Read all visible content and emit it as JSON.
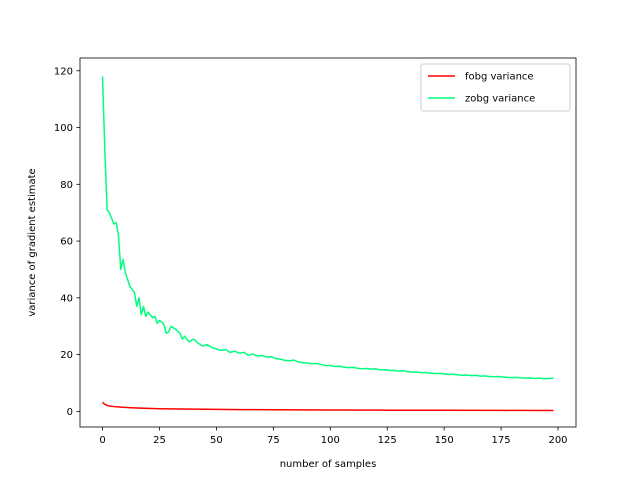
{
  "chart_data": {
    "type": "line",
    "title": "",
    "xlabel": "number of samples",
    "ylabel": "variance of gradient estimate",
    "xlim": [
      -9.9,
      207.9
    ],
    "ylim": [
      -5.5,
      124.5
    ],
    "xticks": [
      0,
      25,
      50,
      75,
      100,
      125,
      150,
      175,
      200
    ],
    "yticks": [
      0,
      20,
      40,
      60,
      80,
      100,
      120
    ],
    "grid": false,
    "legend": "top-right",
    "series": [
      {
        "name": "fobg variance",
        "color": "#ff0000",
        "points": [
          [
            0,
            3.2
          ],
          [
            1,
            2.5
          ],
          [
            2,
            2.1
          ],
          [
            3,
            1.9
          ],
          [
            5,
            1.7
          ],
          [
            8,
            1.5
          ],
          [
            10,
            1.4
          ],
          [
            15,
            1.2
          ],
          [
            20,
            1.05
          ],
          [
            25,
            0.95
          ],
          [
            30,
            0.88
          ],
          [
            40,
            0.78
          ],
          [
            50,
            0.7
          ],
          [
            60,
            0.64
          ],
          [
            75,
            0.56
          ],
          [
            100,
            0.48
          ],
          [
            125,
            0.42
          ],
          [
            150,
            0.38
          ],
          [
            175,
            0.34
          ],
          [
            198,
            0.3
          ]
        ]
      },
      {
        "name": "zobg variance",
        "color": "#00ff7f",
        "points": [
          [
            0,
            118
          ],
          [
            1,
            92
          ],
          [
            2,
            71
          ],
          [
            3,
            70
          ],
          [
            4,
            68
          ],
          [
            5,
            66
          ],
          [
            6,
            66.5
          ],
          [
            7,
            62
          ],
          [
            8,
            50
          ],
          [
            9,
            53.5
          ],
          [
            10,
            49
          ],
          [
            11,
            46.5
          ],
          [
            12,
            44
          ],
          [
            13,
            43
          ],
          [
            14,
            42
          ],
          [
            15,
            37
          ],
          [
            16,
            40
          ],
          [
            17,
            34
          ],
          [
            18,
            37
          ],
          [
            19,
            33.5
          ],
          [
            20,
            35
          ],
          [
            21,
            34
          ],
          [
            22,
            33
          ],
          [
            23,
            33.5
          ],
          [
            24,
            31
          ],
          [
            25,
            32
          ],
          [
            26,
            31.5
          ],
          [
            27,
            30.5
          ],
          [
            28,
            27.5
          ],
          [
            29,
            28
          ],
          [
            30,
            30
          ],
          [
            32,
            29
          ],
          [
            34,
            27.5
          ],
          [
            35,
            25.5
          ],
          [
            36,
            26.5
          ],
          [
            38,
            24.5
          ],
          [
            40,
            25.5
          ],
          [
            42,
            24
          ],
          [
            44,
            23
          ],
          [
            46,
            23.5
          ],
          [
            48,
            22.5
          ],
          [
            50,
            22
          ],
          [
            52,
            21.5
          ],
          [
            54,
            21.8
          ],
          [
            56,
            20.8
          ],
          [
            58,
            21.2
          ],
          [
            60,
            20.5
          ],
          [
            62,
            20.8
          ],
          [
            64,
            19.8
          ],
          [
            66,
            20.2
          ],
          [
            68,
            19.5
          ],
          [
            70,
            19.7
          ],
          [
            72,
            19.1
          ],
          [
            74,
            19.3
          ],
          [
            76,
            18.6
          ],
          [
            78,
            18.4
          ],
          [
            80,
            18
          ],
          [
            82,
            17.8
          ],
          [
            84,
            18.1
          ],
          [
            86,
            17.4
          ],
          [
            88,
            17.2
          ],
          [
            90,
            17
          ],
          [
            92,
            16.8
          ],
          [
            94,
            16.9
          ],
          [
            96,
            16.5
          ],
          [
            98,
            16.1
          ],
          [
            100,
            16.2
          ],
          [
            102,
            15.8
          ],
          [
            104,
            15.9
          ],
          [
            106,
            15.6
          ],
          [
            108,
            15.4
          ],
          [
            110,
            15.5
          ],
          [
            112,
            15.2
          ],
          [
            114,
            15
          ],
          [
            116,
            15.1
          ],
          [
            118,
            14.9
          ],
          [
            120,
            15
          ],
          [
            122,
            14.6
          ],
          [
            124,
            14.7
          ],
          [
            126,
            14.4
          ],
          [
            128,
            14.5
          ],
          [
            130,
            14.2
          ],
          [
            132,
            14.3
          ],
          [
            134,
            14
          ],
          [
            136,
            13.8
          ],
          [
            138,
            13.9
          ],
          [
            140,
            13.6
          ],
          [
            142,
            13.7
          ],
          [
            144,
            13.5
          ],
          [
            146,
            13.3
          ],
          [
            148,
            13.4
          ],
          [
            150,
            13.2
          ],
          [
            152,
            13
          ],
          [
            154,
            13.1
          ],
          [
            156,
            12.9
          ],
          [
            158,
            12.7
          ],
          [
            160,
            12.8
          ],
          [
            162,
            12.6
          ],
          [
            164,
            12.7
          ],
          [
            166,
            12.4
          ],
          [
            168,
            12.5
          ],
          [
            170,
            12.3
          ],
          [
            172,
            12.2
          ],
          [
            174,
            12.3
          ],
          [
            176,
            12.1
          ],
          [
            178,
            12
          ],
          [
            180,
            11.9
          ],
          [
            182,
            12
          ],
          [
            184,
            11.8
          ],
          [
            186,
            11.7
          ],
          [
            188,
            11.8
          ],
          [
            190,
            11.6
          ],
          [
            192,
            11.7
          ],
          [
            194,
            11.5
          ],
          [
            196,
            11.6
          ],
          [
            198,
            11.7
          ]
        ]
      }
    ]
  }
}
